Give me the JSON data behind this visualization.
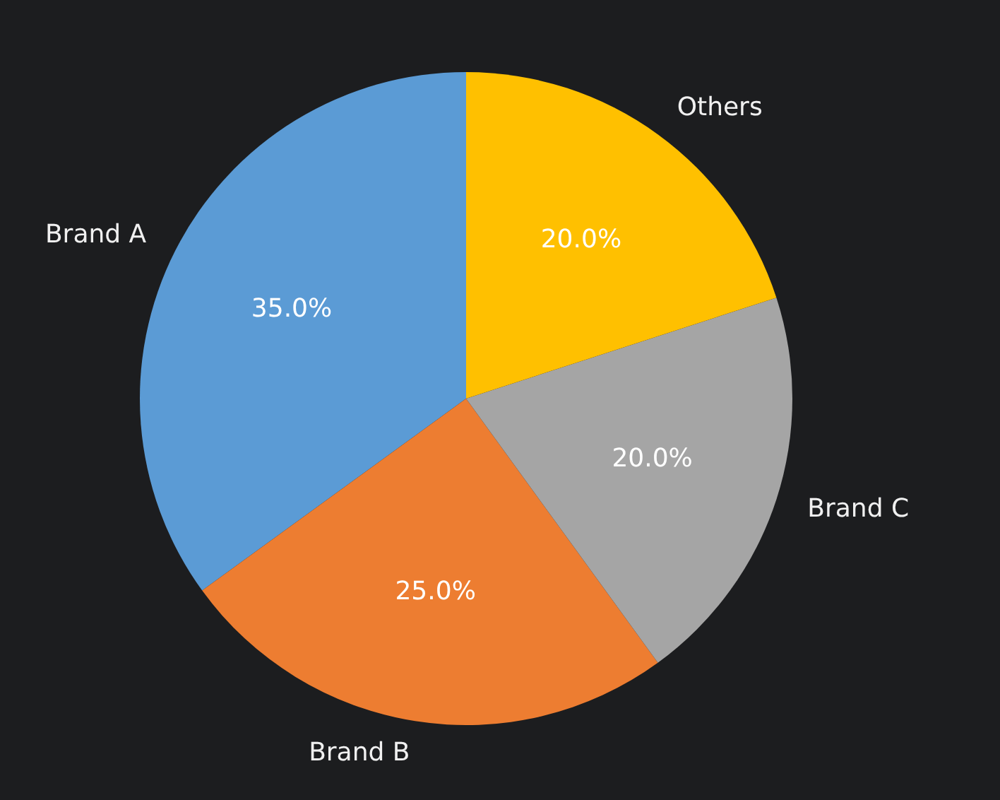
{
  "chart_data": {
    "type": "pie",
    "categories": [
      "Brand A",
      "Brand B",
      "Brand C",
      "Others"
    ],
    "values": [
      35,
      25,
      20,
      20
    ],
    "colors": [
      "#5b9bd5",
      "#ed7d31",
      "#a5a5a5",
      "#ffc000"
    ],
    "value_labels": [
      "35.0%",
      "25.0%",
      "20.0%",
      "20.0%"
    ],
    "legend": false
  }
}
